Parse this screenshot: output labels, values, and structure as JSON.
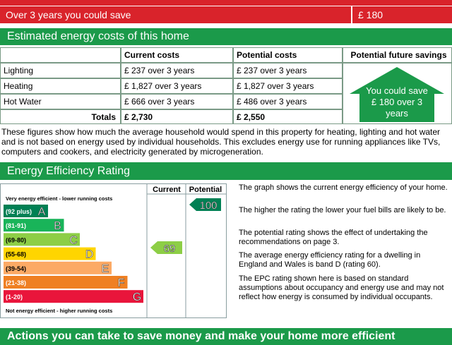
{
  "summary": {
    "label": "Over 3 years you could save",
    "value": "£ 180"
  },
  "costs": {
    "title": "Estimated energy costs of this home",
    "columns": [
      "Current costs",
      "Potential costs",
      "Potential future savings"
    ],
    "rows": [
      [
        "Lighting",
        "£ 237 over 3 years",
        "£ 237 over 3 years"
      ],
      [
        "Heating",
        "£ 1,827 over 3 years",
        "£ 1,827 over 3 years"
      ],
      [
        "Hot Water",
        "£ 666 over 3 years",
        "£ 486 over 3 years"
      ]
    ],
    "totals": {
      "label": "Totals",
      "current": "£ 2,730",
      "potential": "£ 2,550"
    },
    "savings": "You could save £ 180 over 3 years"
  },
  "note": "These figures show how much the average household would spend in this property for heating, lighting and hot water and is not based on energy used by individual households. This excludes energy use for running appliances like TVs, computers and cookers, and electricity generated by microgeneration.",
  "rating": {
    "title": "Energy Efficiency Rating",
    "columns": [
      "Current",
      "Potential"
    ],
    "top_label": "Very energy efficient - lower running costs",
    "bottom_label": "Not energy efficient - higher running costs",
    "bands": [
      {
        "range": "(92 plus)",
        "letter": "A"
      },
      {
        "range": "(81-91)",
        "letter": "B"
      },
      {
        "range": "(69-80)",
        "letter": "C"
      },
      {
        "range": "(55-68)",
        "letter": "D"
      },
      {
        "range": "(39-54)",
        "letter": "E"
      },
      {
        "range": "(21-38)",
        "letter": "F"
      },
      {
        "range": "(1-20)",
        "letter": "G"
      }
    ],
    "current": 69,
    "potential": 100,
    "notes": [
      "The graph shows the current energy efficiency of your home.",
      "The higher the rating the lower your fuel bills are likely to be.",
      "The potential rating shows the effect of undertaking the recommendations on page 3.",
      "The average energy efficiency rating for a dwelling in England and Wales is band D (rating 60).",
      "The EPC rating shown here is based on standard assumptions about occupancy and energy use and may not reflect how energy is consumed by individual occupants."
    ]
  },
  "actions": {
    "title": "Actions you can take to save money and make your home more efficient"
  }
}
